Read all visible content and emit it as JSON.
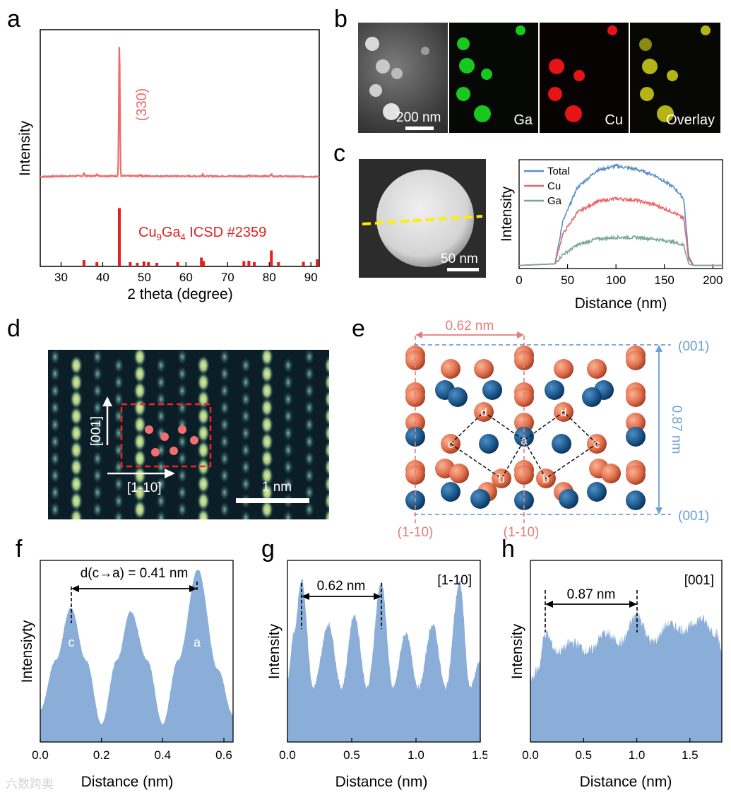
{
  "panel_labels": {
    "a": "a",
    "b": "b",
    "c": "c",
    "d": "d",
    "e": "e",
    "f": "f",
    "g": "g",
    "h": "h"
  },
  "panel_a": {
    "peak_label": "(330)",
    "reference_label_main": "Cu",
    "reference_sub1": "9",
    "reference_mid": "Ga",
    "reference_sub2": "4",
    "reference_tail": " ICSD #2359",
    "colors": {
      "pattern": "#f06a6a",
      "reference": "#e32020"
    }
  },
  "panel_b": {
    "scale_bar": "200 nm",
    "maps": [
      "Ga",
      "Cu",
      "Overlay"
    ],
    "colors": {
      "ga": "#19c81e",
      "cu": "#e61414",
      "overlay": "#b4b414"
    }
  },
  "panel_c": {
    "scale_bar": "50 nm",
    "legend": [
      "Total",
      "Cu",
      "Ga"
    ],
    "colors": {
      "total": "#5b8fc7",
      "cu": "#e8686a",
      "ga": "#79a692",
      "line": "#ffee00"
    }
  },
  "panel_d": {
    "dir_vertical": "[001]",
    "dir_horizontal": "[1-10]",
    "scale_bar": "1 nm"
  },
  "panel_e": {
    "spacing_top": "0.62 nm",
    "spacing_side": "0.87 nm",
    "plane_top": "(001)",
    "plane_bottom": "(001)",
    "plane_left": "(1-10)",
    "plane_mid": "(1-10)",
    "site_labels": [
      "a",
      "b",
      "c",
      "d"
    ],
    "colors": {
      "cu": "#e67a56",
      "ga": "#1f5b93",
      "pink": "#e87a7a",
      "blue": "#6a9fd8"
    }
  },
  "panel_f": {
    "annotation": "d(c→a) = 0.41 nm",
    "peak_c": "c",
    "peak_a": "a"
  },
  "panel_g": {
    "annotation": "0.62 nm",
    "direction": "[1-10]"
  },
  "panel_h": {
    "annotation": "0.87 nm",
    "direction": "[001]"
  },
  "watermark": "六数跨奥",
  "chart_data": [
    {
      "panel": "a",
      "type": "line",
      "xlabel": "2 theta (degree)",
      "ylabel": "Intensity",
      "xlim": [
        25,
        92
      ],
      "x_ticks": [
        30,
        40,
        50,
        60,
        70,
        80,
        90
      ],
      "series": [
        {
          "name": "XRD pattern",
          "x": [
            25,
            30,
            35.5,
            38.6,
            43.6,
            44.0,
            44.4,
            49,
            64,
            80.5,
            92
          ],
          "y": [
            0.72,
            0.78,
            0.8,
            0.8,
            0.95,
            6.5,
            0.95,
            0.77,
            0.78,
            0.79,
            0.72
          ]
        }
      ],
      "reference": {
        "name": "Cu9Ga4 ICSD #2359",
        "x": [
          35.5,
          38.6,
          44.0,
          46.6,
          48.3,
          49.9,
          51.0,
          53.0,
          58.0,
          63.7,
          64.2,
          73.9,
          75.1,
          76.4,
          80.5,
          82.2,
          88.2,
          91.5
        ],
        "y": [
          0.18,
          0.12,
          1.65,
          0.12,
          0.1,
          0.14,
          0.12,
          0.1,
          0.12,
          0.25,
          0.15,
          0.15,
          0.16,
          0.12,
          0.45,
          0.12,
          0.13,
          0.2
        ]
      }
    },
    {
      "panel": "c",
      "type": "line",
      "xlabel": "Distance (nm)",
      "ylabel": "Intensity",
      "xlim": [
        0,
        210
      ],
      "x_ticks": [
        0,
        50,
        100,
        150,
        200
      ],
      "series": [
        {
          "name": "Total",
          "x": [
            0,
            37,
            45,
            60,
            80,
            100,
            120,
            140,
            160,
            170,
            175,
            180,
            210
          ],
          "y": [
            0.02,
            0.03,
            0.3,
            0.52,
            0.63,
            0.66,
            0.64,
            0.6,
            0.52,
            0.45,
            0.08,
            0.02,
            0.02
          ]
        },
        {
          "name": "Cu",
          "x": [
            0,
            37,
            45,
            60,
            80,
            100,
            120,
            140,
            160,
            170,
            175,
            180,
            210
          ],
          "y": [
            0.02,
            0.03,
            0.22,
            0.36,
            0.43,
            0.45,
            0.44,
            0.41,
            0.36,
            0.32,
            0.06,
            0.02,
            0.02
          ]
        },
        {
          "name": "Ga",
          "x": [
            0,
            37,
            45,
            60,
            80,
            100,
            120,
            140,
            160,
            170,
            175,
            180,
            210
          ],
          "y": [
            0.02,
            0.03,
            0.09,
            0.15,
            0.19,
            0.2,
            0.2,
            0.19,
            0.17,
            0.15,
            0.03,
            0.02,
            0.02
          ]
        }
      ]
    },
    {
      "panel": "f",
      "type": "area",
      "xlabel": "Distance (nm)",
      "ylabel": "Intensiyty",
      "xlim": [
        0,
        0.63
      ],
      "x_ticks": [
        0.0,
        0.2,
        0.4,
        0.6
      ],
      "series": [
        {
          "name": "profile",
          "x": [
            0,
            0.05,
            0.1,
            0.15,
            0.2,
            0.25,
            0.295,
            0.35,
            0.4,
            0.45,
            0.515,
            0.58,
            0.63
          ],
          "y": [
            0.18,
            0.45,
            0.74,
            0.45,
            0.1,
            0.45,
            0.72,
            0.45,
            0.1,
            0.45,
            0.95,
            0.4,
            0.15
          ]
        }
      ]
    },
    {
      "panel": "g",
      "type": "area",
      "xlabel": "Distance (nm)",
      "ylabel": "Intensity",
      "xlim": [
        0,
        1.5
      ],
      "x_ticks": [
        0.0,
        0.5,
        1.0,
        1.5
      ],
      "series": [
        {
          "name": "profile",
          "x": [
            0,
            0.05,
            0.11,
            0.2,
            0.32,
            0.42,
            0.52,
            0.62,
            0.73,
            0.82,
            0.92,
            1.02,
            1.13,
            1.23,
            1.34,
            1.42,
            1.5
          ],
          "y": [
            0.35,
            0.6,
            0.9,
            0.3,
            0.65,
            0.3,
            0.7,
            0.3,
            0.88,
            0.3,
            0.6,
            0.3,
            0.65,
            0.3,
            0.88,
            0.3,
            0.45
          ]
        }
      ]
    },
    {
      "panel": "h",
      "type": "area",
      "xlabel": "Distance (nm)",
      "ylabel": "Intensity",
      "xlim": [
        0,
        1.8
      ],
      "x_ticks": [
        0.0,
        0.5,
        1.0,
        1.5
      ],
      "series": [
        {
          "name": "profile",
          "x": [
            0,
            0.07,
            0.14,
            0.25,
            0.4,
            0.55,
            0.7,
            0.85,
            1.0,
            1.15,
            1.3,
            1.45,
            1.6,
            1.75,
            1.8
          ],
          "y": [
            0.35,
            0.4,
            0.6,
            0.5,
            0.55,
            0.5,
            0.6,
            0.55,
            0.7,
            0.55,
            0.65,
            0.62,
            0.68,
            0.6,
            0.5
          ]
        }
      ]
    }
  ]
}
